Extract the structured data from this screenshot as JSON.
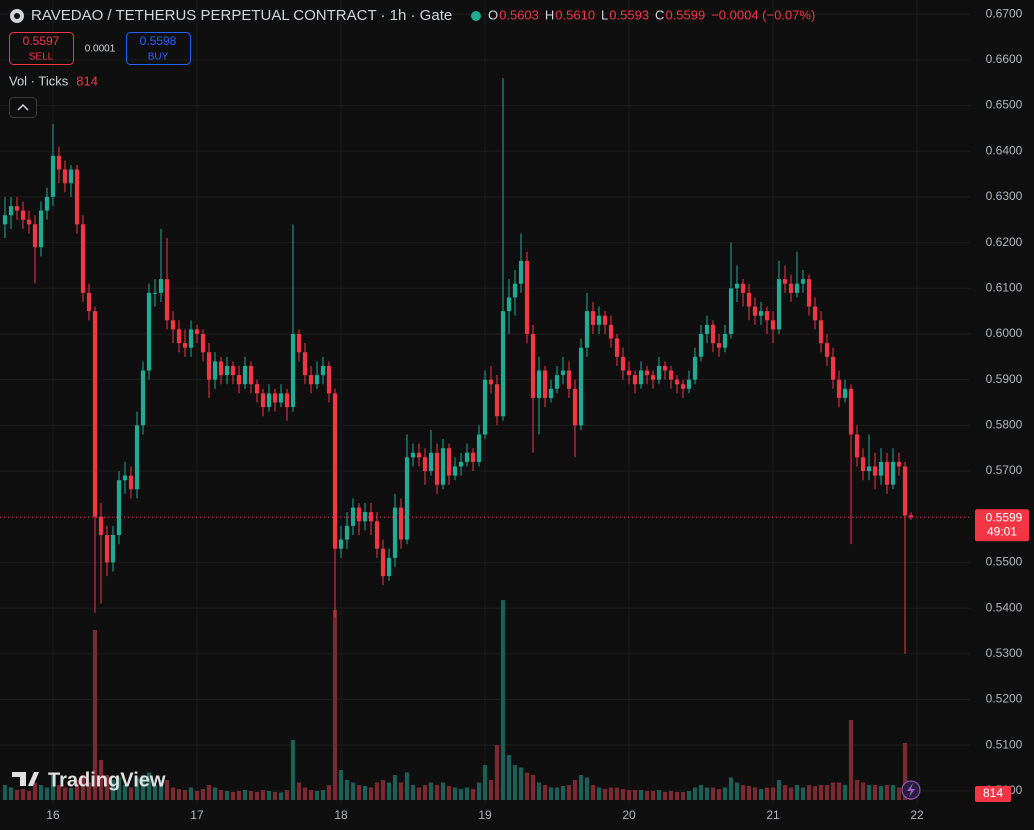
{
  "chart_data": {
    "type": "candlestick",
    "title": "RAVEDAO / TETHERUS PERPETUAL CONTRACT · 1h · Gate",
    "ohlc": [
      {
        "key": "O",
        "value": "0.5603"
      },
      {
        "key": "H",
        "value": "0.5610"
      },
      {
        "key": "L",
        "value": "0.5593"
      },
      {
        "key": "C",
        "value": "0.5599"
      }
    ],
    "change": "−0.0004 (−0.07%)",
    "sell": {
      "price": "0.5597",
      "label": "SELL"
    },
    "spread": "0.0001",
    "buy": {
      "price": "0.5598",
      "label": "BUY"
    },
    "volume_legend": {
      "name": "Vol · Ticks",
      "value": "814"
    },
    "watermark": "TradingView",
    "up_color": "#22ab94",
    "down_color": "#f23645",
    "volume_up_color": "#1d5f55",
    "volume_down_color": "#7a2a30",
    "last_price": {
      "value": 0.5599,
      "label": "0.5599"
    },
    "countdown": "49:01",
    "volume_label": "814",
    "ylim": [
      0.498,
      0.6731
    ],
    "yticks": [
      {
        "value": 0.5,
        "label": "0.5000"
      },
      {
        "value": 0.51,
        "label": "0.5100"
      },
      {
        "value": 0.52,
        "label": "0.5200"
      },
      {
        "value": 0.53,
        "label": "0.5300"
      },
      {
        "value": 0.54,
        "label": "0.5400"
      },
      {
        "value": 0.55,
        "label": "0.5500"
      },
      {
        "value": 0.56,
        "label": "0.5600"
      },
      {
        "value": 0.57,
        "label": "0.5700"
      },
      {
        "value": 0.58,
        "label": "0.5800"
      },
      {
        "value": 0.59,
        "label": "0.5900"
      },
      {
        "value": 0.6,
        "label": "0.6000"
      },
      {
        "value": 0.61,
        "label": "0.6100"
      },
      {
        "value": 0.62,
        "label": "0.6200"
      },
      {
        "value": 0.63,
        "label": "0.6300"
      },
      {
        "value": 0.64,
        "label": "0.6400"
      },
      {
        "value": 0.65,
        "label": "0.6500"
      },
      {
        "value": 0.66,
        "label": "0.6600"
      },
      {
        "value": 0.67,
        "label": "0.6700"
      }
    ],
    "xlim": [
      -0.83,
      160.83
    ],
    "xticks": [
      {
        "value": 8,
        "label": "16"
      },
      {
        "value": 32,
        "label": "17"
      },
      {
        "value": 56,
        "label": "18"
      },
      {
        "value": 80,
        "label": "19"
      },
      {
        "value": 104,
        "label": "20"
      },
      {
        "value": 128,
        "label": "21"
      },
      {
        "value": 152,
        "label": "22"
      }
    ],
    "volume_lim": [
      0,
      160000
    ],
    "grid": true,
    "candles": [
      [
        0.624,
        0.63,
        0.621,
        0.626
      ],
      [
        0.626,
        0.63,
        0.623,
        0.628
      ],
      [
        0.628,
        0.63,
        0.625,
        0.627
      ],
      [
        0.627,
        0.629,
        0.623,
        0.625
      ],
      [
        0.625,
        0.627,
        0.622,
        0.624
      ],
      [
        0.624,
        0.626,
        0.611,
        0.619
      ],
      [
        0.619,
        0.629,
        0.617,
        0.627
      ],
      [
        0.627,
        0.632,
        0.625,
        0.63
      ],
      [
        0.63,
        0.646,
        0.628,
        0.639
      ],
      [
        0.639,
        0.641,
        0.633,
        0.636
      ],
      [
        0.636,
        0.638,
        0.631,
        0.633
      ],
      [
        0.633,
        0.637,
        0.63,
        0.636
      ],
      [
        0.636,
        0.637,
        0.622,
        0.624
      ],
      [
        0.624,
        0.626,
        0.607,
        0.609
      ],
      [
        0.609,
        0.611,
        0.603,
        0.605
      ],
      [
        0.605,
        0.606,
        0.539,
        0.56
      ],
      [
        0.56,
        0.563,
        0.541,
        0.556
      ],
      [
        0.556,
        0.558,
        0.547,
        0.55
      ],
      [
        0.55,
        0.558,
        0.548,
        0.556
      ],
      [
        0.556,
        0.57,
        0.554,
        0.568
      ],
      [
        0.568,
        0.572,
        0.565,
        0.569
      ],
      [
        0.569,
        0.571,
        0.564,
        0.566
      ],
      [
        0.566,
        0.583,
        0.564,
        0.58
      ],
      [
        0.58,
        0.594,
        0.578,
        0.592
      ],
      [
        0.592,
        0.611,
        0.59,
        0.609
      ],
      [
        0.609,
        0.612,
        0.606,
        0.609
      ],
      [
        0.609,
        0.623,
        0.607,
        0.612
      ],
      [
        0.612,
        0.621,
        0.601,
        0.603
      ],
      [
        0.603,
        0.605,
        0.598,
        0.601
      ],
      [
        0.601,
        0.603,
        0.596,
        0.598
      ],
      [
        0.598,
        0.601,
        0.595,
        0.597
      ],
      [
        0.597,
        0.603,
        0.595,
        0.601
      ],
      [
        0.601,
        0.602,
        0.598,
        0.6
      ],
      [
        0.6,
        0.601,
        0.594,
        0.596
      ],
      [
        0.596,
        0.598,
        0.586,
        0.59
      ],
      [
        0.59,
        0.596,
        0.588,
        0.594
      ],
      [
        0.594,
        0.595,
        0.589,
        0.591
      ],
      [
        0.591,
        0.595,
        0.589,
        0.593
      ],
      [
        0.593,
        0.594,
        0.589,
        0.591
      ],
      [
        0.591,
        0.593,
        0.587,
        0.589
      ],
      [
        0.589,
        0.595,
        0.588,
        0.593
      ],
      [
        0.593,
        0.594,
        0.587,
        0.589
      ],
      [
        0.589,
        0.59,
        0.585,
        0.587
      ],
      [
        0.587,
        0.588,
        0.582,
        0.584
      ],
      [
        0.584,
        0.589,
        0.583,
        0.587
      ],
      [
        0.587,
        0.588,
        0.583,
        0.585
      ],
      [
        0.585,
        0.589,
        0.584,
        0.587
      ],
      [
        0.587,
        0.588,
        0.581,
        0.584
      ],
      [
        0.584,
        0.624,
        0.583,
        0.6
      ],
      [
        0.6,
        0.601,
        0.594,
        0.596
      ],
      [
        0.596,
        0.598,
        0.589,
        0.591
      ],
      [
        0.591,
        0.593,
        0.587,
        0.589
      ],
      [
        0.589,
        0.594,
        0.588,
        0.591
      ],
      [
        0.591,
        0.595,
        0.589,
        0.593
      ],
      [
        0.593,
        0.594,
        0.585,
        0.587
      ],
      [
        0.587,
        0.588,
        0.538,
        0.553
      ],
      [
        0.553,
        0.558,
        0.551,
        0.555
      ],
      [
        0.555,
        0.561,
        0.553,
        0.558
      ],
      [
        0.558,
        0.564,
        0.556,
        0.562
      ],
      [
        0.562,
        0.563,
        0.556,
        0.559
      ],
      [
        0.559,
        0.563,
        0.557,
        0.561
      ],
      [
        0.561,
        0.563,
        0.556,
        0.559
      ],
      [
        0.559,
        0.561,
        0.551,
        0.553
      ],
      [
        0.553,
        0.555,
        0.545,
        0.547
      ],
      [
        0.547,
        0.553,
        0.546,
        0.551
      ],
      [
        0.551,
        0.565,
        0.549,
        0.562
      ],
      [
        0.562,
        0.564,
        0.553,
        0.555
      ],
      [
        0.555,
        0.578,
        0.554,
        0.573
      ],
      [
        0.573,
        0.576,
        0.571,
        0.574
      ],
      [
        0.574,
        0.576,
        0.571,
        0.573
      ],
      [
        0.573,
        0.575,
        0.567,
        0.57
      ],
      [
        0.57,
        0.579,
        0.569,
        0.574
      ],
      [
        0.574,
        0.576,
        0.565,
        0.567
      ],
      [
        0.567,
        0.577,
        0.566,
        0.575
      ],
      [
        0.575,
        0.576,
        0.567,
        0.569
      ],
      [
        0.569,
        0.573,
        0.568,
        0.571
      ],
      [
        0.571,
        0.574,
        0.569,
        0.572
      ],
      [
        0.572,
        0.576,
        0.571,
        0.574
      ],
      [
        0.574,
        0.575,
        0.57,
        0.572
      ],
      [
        0.572,
        0.58,
        0.571,
        0.578
      ],
      [
        0.578,
        0.592,
        0.577,
        0.59
      ],
      [
        0.59,
        0.593,
        0.587,
        0.589
      ],
      [
        0.589,
        0.591,
        0.58,
        0.582
      ],
      [
        0.582,
        0.656,
        0.581,
        0.605
      ],
      [
        0.605,
        0.612,
        0.6,
        0.608
      ],
      [
        0.608,
        0.614,
        0.604,
        0.611
      ],
      [
        0.611,
        0.622,
        0.609,
        0.616
      ],
      [
        0.616,
        0.618,
        0.598,
        0.6
      ],
      [
        0.6,
        0.602,
        0.574,
        0.586
      ],
      [
        0.586,
        0.595,
        0.578,
        0.592
      ],
      [
        0.592,
        0.593,
        0.584,
        0.586
      ],
      [
        0.586,
        0.59,
        0.585,
        0.588
      ],
      [
        0.588,
        0.593,
        0.587,
        0.591
      ],
      [
        0.591,
        0.595,
        0.589,
        0.592
      ],
      [
        0.592,
        0.594,
        0.586,
        0.588
      ],
      [
        0.588,
        0.59,
        0.573,
        0.58
      ],
      [
        0.58,
        0.599,
        0.579,
        0.597
      ],
      [
        0.597,
        0.609,
        0.595,
        0.605
      ],
      [
        0.605,
        0.607,
        0.6,
        0.602
      ],
      [
        0.602,
        0.606,
        0.6,
        0.604
      ],
      [
        0.604,
        0.605,
        0.6,
        0.602
      ],
      [
        0.602,
        0.604,
        0.597,
        0.599
      ],
      [
        0.599,
        0.6,
        0.593,
        0.595
      ],
      [
        0.595,
        0.597,
        0.59,
        0.592
      ],
      [
        0.592,
        0.594,
        0.589,
        0.591
      ],
      [
        0.591,
        0.592,
        0.587,
        0.589
      ],
      [
        0.589,
        0.594,
        0.588,
        0.592
      ],
      [
        0.592,
        0.593,
        0.589,
        0.591
      ],
      [
        0.591,
        0.592,
        0.588,
        0.59
      ],
      [
        0.59,
        0.595,
        0.589,
        0.593
      ],
      [
        0.593,
        0.594,
        0.59,
        0.592
      ],
      [
        0.592,
        0.593,
        0.588,
        0.59
      ],
      [
        0.59,
        0.591,
        0.587,
        0.589
      ],
      [
        0.589,
        0.59,
        0.586,
        0.588
      ],
      [
        0.588,
        0.592,
        0.587,
        0.59
      ],
      [
        0.59,
        0.597,
        0.589,
        0.595
      ],
      [
        0.595,
        0.602,
        0.594,
        0.6
      ],
      [
        0.6,
        0.604,
        0.598,
        0.602
      ],
      [
        0.602,
        0.603,
        0.596,
        0.598
      ],
      [
        0.598,
        0.6,
        0.595,
        0.597
      ],
      [
        0.597,
        0.602,
        0.596,
        0.6
      ],
      [
        0.6,
        0.62,
        0.599,
        0.61
      ],
      [
        0.61,
        0.615,
        0.607,
        0.611
      ],
      [
        0.611,
        0.612,
        0.606,
        0.609
      ],
      [
        0.609,
        0.611,
        0.603,
        0.606
      ],
      [
        0.606,
        0.608,
        0.602,
        0.604
      ],
      [
        0.604,
        0.607,
        0.602,
        0.605
      ],
      [
        0.605,
        0.606,
        0.6,
        0.603
      ],
      [
        0.603,
        0.605,
        0.598,
        0.601
      ],
      [
        0.601,
        0.616,
        0.6,
        0.612
      ],
      [
        0.612,
        0.615,
        0.609,
        0.611
      ],
      [
        0.611,
        0.613,
        0.607,
        0.609
      ],
      [
        0.609,
        0.618,
        0.608,
        0.611
      ],
      [
        0.611,
        0.614,
        0.609,
        0.612
      ],
      [
        0.612,
        0.613,
        0.604,
        0.606
      ],
      [
        0.606,
        0.608,
        0.601,
        0.603
      ],
      [
        0.603,
        0.605,
        0.596,
        0.598
      ],
      [
        0.598,
        0.6,
        0.593,
        0.595
      ],
      [
        0.595,
        0.597,
        0.588,
        0.59
      ],
      [
        0.59,
        0.592,
        0.584,
        0.586
      ],
      [
        0.586,
        0.59,
        0.585,
        0.588
      ],
      [
        0.588,
        0.589,
        0.554,
        0.578
      ],
      [
        0.578,
        0.58,
        0.571,
        0.573
      ],
      [
        0.573,
        0.575,
        0.568,
        0.57
      ],
      [
        0.57,
        0.578,
        0.568,
        0.571
      ],
      [
        0.571,
        0.574,
        0.566,
        0.569
      ],
      [
        0.569,
        0.575,
        0.567,
        0.572
      ],
      [
        0.572,
        0.574,
        0.565,
        0.567
      ],
      [
        0.567,
        0.575,
        0.566,
        0.572
      ],
      [
        0.572,
        0.574,
        0.569,
        0.571
      ],
      [
        0.571,
        0.572,
        0.53,
        0.5603
      ],
      [
        0.5603,
        0.561,
        0.5593,
        0.5599
      ]
    ],
    "volume": [
      3000,
      2500,
      2000,
      2200,
      1800,
      3500,
      3000,
      2500,
      5000,
      3000,
      2500,
      2400,
      4000,
      5000,
      3500,
      34000,
      8000,
      5000,
      4000,
      4500,
      3000,
      2500,
      4500,
      5000,
      5500,
      3000,
      4000,
      4000,
      2500,
      2200,
      2000,
      2500,
      1800,
      2200,
      3000,
      2500,
      2000,
      1800,
      1600,
      1800,
      2000,
      1800,
      1600,
      2000,
      1800,
      1600,
      1500,
      2000,
      12000,
      3500,
      2500,
      2000,
      1800,
      2000,
      3000,
      38000,
      6000,
      4000,
      3500,
      3000,
      2800,
      2500,
      3500,
      4000,
      3500,
      5000,
      3500,
      5500,
      3000,
      2500,
      3000,
      3500,
      3000,
      3500,
      2800,
      2500,
      2200,
      2500,
      2200,
      3500,
      7000,
      4000,
      11000,
      40000,
      9000,
      7000,
      6500,
      5500,
      5000,
      3500,
      3000,
      2500,
      2500,
      2800,
      3000,
      4000,
      5000,
      4500,
      3000,
      2500,
      2200,
      2500,
      2500,
      2200,
      2000,
      2000,
      2000,
      1800,
      1800,
      2000,
      1600,
      1800,
      1600,
      1600,
      1800,
      2500,
      3000,
      2500,
      2500,
      2200,
      2500,
      4500,
      3500,
      3000,
      2800,
      2500,
      2200,
      2500,
      2500,
      4000,
      3000,
      2500,
      3000,
      2500,
      3000,
      2800,
      3000,
      3000,
      3500,
      3500,
      3000,
      16000,
      4000,
      3500,
      3000,
      3000,
      2800,
      3000,
      3000,
      2500,
      11400,
      814
    ]
  }
}
